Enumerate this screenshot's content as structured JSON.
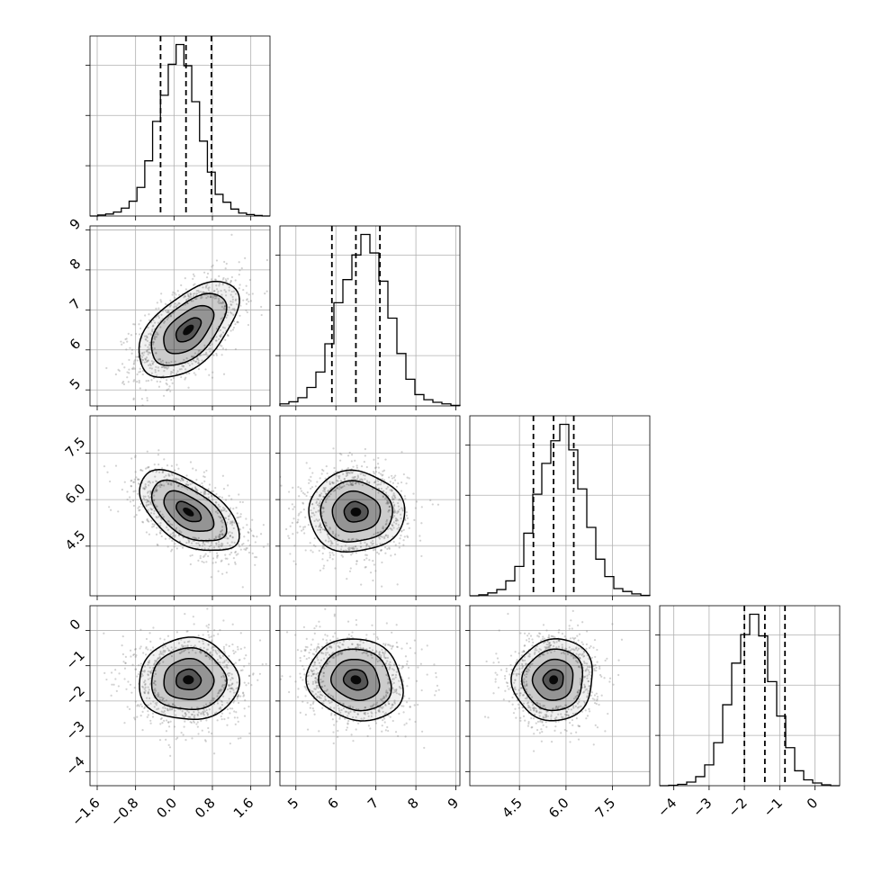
{
  "chart_data": {
    "type": "corner",
    "parameters": [
      {
        "key": "p1",
        "range": [
          -1.75,
          2.0
        ],
        "ticks": [
          -1.6,
          -0.8,
          0.0,
          0.8,
          1.6
        ],
        "tick_labels": [
          "−1.6",
          "−0.8",
          "0.0",
          "0.8",
          "1.6"
        ],
        "quantiles": [
          -0.28,
          0.25,
          0.78
        ],
        "histogram": [
          0,
          2,
          4,
          8,
          16,
          30,
          58,
          112,
          192,
          245,
          308,
          348,
          305,
          232,
          152,
          89,
          44,
          28,
          14,
          6,
          3,
          1,
          0
        ]
      },
      {
        "key": "p2",
        "range": [
          4.6,
          9.1
        ],
        "ticks": [
          5,
          6,
          7,
          8,
          9
        ],
        "tick_labels": [
          "5",
          "6",
          "7",
          "8",
          "9"
        ],
        "quantiles": [
          5.9,
          6.5,
          7.1
        ],
        "histogram": [
          4,
          8,
          16,
          36,
          66,
          121,
          201,
          246,
          294,
          334,
          298,
          243,
          171,
          102,
          52,
          22,
          12,
          7,
          4,
          1
        ]
      },
      {
        "key": "p3",
        "range": [
          2.9,
          8.7
        ],
        "ticks": [
          4.5,
          6.0,
          7.5
        ],
        "tick_labels": [
          "4.5",
          "6.0",
          "7.5"
        ],
        "quantiles": [
          4.95,
          5.6,
          6.25
        ],
        "histogram": [
          0,
          2,
          6,
          13,
          31,
          61,
          130,
          211,
          275,
          322,
          356,
          303,
          222,
          142,
          76,
          40,
          15,
          9,
          4,
          1
        ]
      },
      {
        "key": "p4",
        "range": [
          -4.4,
          0.7
        ],
        "ticks": [
          -4,
          -3,
          -2,
          -1,
          0
        ],
        "tick_labels": [
          "−4",
          "−3",
          "−2",
          "−1",
          "0"
        ],
        "quantiles": [
          -2.0,
          -1.42,
          -0.85
        ],
        "histogram": [
          0,
          1,
          3,
          8,
          20,
          46,
          95,
          179,
          271,
          334,
          379,
          331,
          230,
          154,
          84,
          33,
          13,
          6,
          2,
          0
        ]
      }
    ],
    "panels": [
      {
        "x": "p1",
        "y": "p2",
        "center": [
          0.3,
          6.5
        ],
        "sd": [
          0.52,
          0.6
        ],
        "rho": 0.55
      },
      {
        "x": "p1",
        "y": "p3",
        "center": [
          0.3,
          5.6
        ],
        "sd": [
          0.52,
          0.65
        ],
        "rho": -0.55
      },
      {
        "x": "p2",
        "y": "p3",
        "center": [
          6.5,
          5.6
        ],
        "sd": [
          0.6,
          0.65
        ],
        "rho": 0.0
      },
      {
        "x": "p1",
        "y": "p4",
        "center": [
          0.3,
          -1.4
        ],
        "sd": [
          0.52,
          0.58
        ],
        "rho": 0.0
      },
      {
        "x": "p2",
        "y": "p4",
        "center": [
          6.5,
          -1.4
        ],
        "sd": [
          0.6,
          0.58
        ],
        "rho": -0.12
      },
      {
        "x": "p3",
        "y": "p4",
        "center": [
          5.6,
          -1.4
        ],
        "sd": [
          0.65,
          0.58
        ],
        "rho": 0.05
      }
    ],
    "contour_levels_sigma": [
      0.5,
      1.0,
      1.5,
      2.0
    ],
    "grid": true,
    "colors": {
      "line": "#000000",
      "points": "#7f7f7f",
      "grid": "#b0b0b0",
      "density": "#000000"
    }
  }
}
